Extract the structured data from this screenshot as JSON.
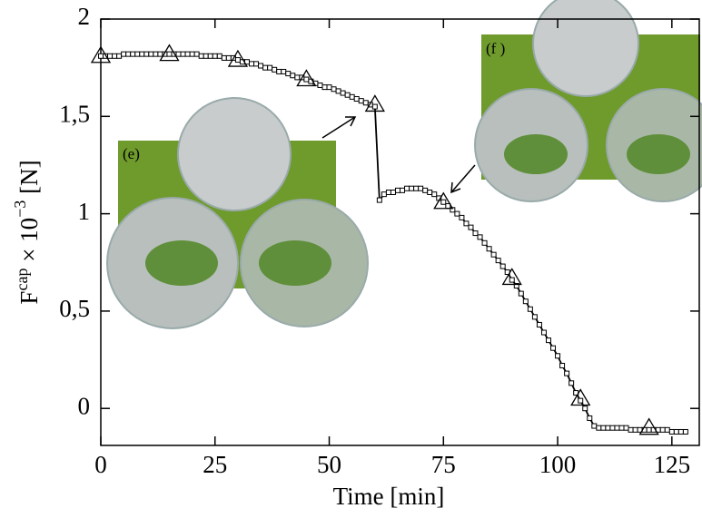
{
  "chart_data": {
    "type": "line",
    "x_label": "Time [min]",
    "y_label": [
      "F",
      "cap",
      " × 10",
      "−3",
      " [N]"
    ],
    "annotations": [
      "(e)",
      "(f )"
    ],
    "xlim": [
      0,
      131
    ],
    "ylim": [
      -0.19,
      2
    ],
    "xticks": [
      0,
      25,
      50,
      75,
      100,
      125
    ],
    "yticks": [
      0,
      {
        "value": 0.5,
        "label": "0,5"
      },
      1,
      {
        "value": 1.5,
        "label": "1,5"
      },
      2
    ],
    "series": [
      {
        "marker": "square",
        "color": "#000000",
        "x": [
          0,
          1,
          2,
          3,
          4,
          5,
          6,
          7,
          8,
          9,
          10,
          11,
          12,
          13,
          14,
          15,
          16,
          17,
          18,
          19,
          20,
          21,
          22,
          23,
          24,
          25,
          26,
          27,
          28,
          29,
          30,
          31,
          32,
          33,
          34,
          35,
          36,
          37,
          38,
          39,
          40,
          41,
          42,
          43,
          44,
          45,
          46,
          47,
          48,
          49,
          50,
          51,
          52,
          53,
          54,
          55,
          56,
          57,
          58,
          59,
          60,
          61,
          62,
          63,
          64,
          65,
          66,
          67,
          68,
          69,
          70,
          71,
          72,
          73,
          74,
          75,
          76,
          77,
          78,
          79,
          80,
          81,
          82,
          83,
          84,
          85,
          86,
          87,
          88,
          89,
          90,
          91,
          92,
          93,
          94,
          95,
          96,
          97,
          98,
          99,
          100,
          101,
          102,
          103,
          104,
          105,
          106,
          107,
          108,
          109,
          110,
          111,
          112,
          113,
          114,
          115,
          116,
          117,
          118,
          119,
          120,
          121,
          122,
          123,
          124,
          125,
          126,
          127,
          128
        ],
        "values": [
          1.81,
          1.81,
          1.81,
          1.81,
          1.81,
          1.82,
          1.82,
          1.82,
          1.82,
          1.82,
          1.82,
          1.82,
          1.82,
          1.82,
          1.82,
          1.82,
          1.82,
          1.82,
          1.82,
          1.82,
          1.82,
          1.82,
          1.81,
          1.81,
          1.81,
          1.81,
          1.81,
          1.8,
          1.8,
          1.8,
          1.79,
          1.78,
          1.78,
          1.77,
          1.77,
          1.76,
          1.75,
          1.75,
          1.74,
          1.73,
          1.73,
          1.72,
          1.71,
          1.7,
          1.7,
          1.69,
          1.68,
          1.67,
          1.66,
          1.65,
          1.65,
          1.64,
          1.63,
          1.62,
          1.61,
          1.6,
          1.59,
          1.58,
          1.57,
          1.56,
          1.55,
          1.07,
          1.1,
          1.11,
          1.11,
          1.12,
          1.12,
          1.13,
          1.13,
          1.13,
          1.13,
          1.12,
          1.11,
          1.1,
          1.08,
          1.06,
          1.04,
          1.02,
          1.0,
          0.98,
          0.95,
          0.93,
          0.9,
          0.88,
          0.85,
          0.82,
          0.79,
          0.76,
          0.73,
          0.7,
          0.66,
          0.63,
          0.59,
          0.55,
          0.51,
          0.47,
          0.43,
          0.39,
          0.35,
          0.31,
          0.27,
          0.22,
          0.18,
          0.13,
          0.08,
          0.04,
          0.0,
          -0.05,
          -0.09,
          -0.1,
          -0.1,
          -0.1,
          -0.1,
          -0.1,
          -0.1,
          -0.1,
          -0.11,
          -0.11,
          -0.11,
          -0.11,
          -0.11,
          -0.11,
          -0.11,
          -0.11,
          -0.11,
          -0.12,
          -0.12,
          -0.12,
          -0.12
        ]
      },
      {
        "marker": "triangle",
        "color": "#000000",
        "x": [
          0,
          15,
          30,
          45,
          60,
          75,
          90,
          105,
          120
        ],
        "values": [
          1.81,
          1.82,
          1.79,
          1.69,
          1.56,
          1.06,
          0.67,
          0.05,
          -0.1
        ]
      }
    ]
  }
}
